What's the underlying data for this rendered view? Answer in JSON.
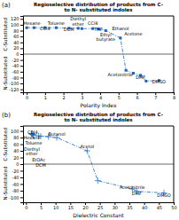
{
  "chart_data": [
    {
      "type": "line",
      "title": "Regioselective distribution of products from C- to N- substituted indoles",
      "panel_label": "(a)",
      "x_label": "Polarity Index",
      "y_label_top": "C-Substituted",
      "y_label_bottom": "N-Substituted",
      "x": [
        0.0,
        0.4,
        1.0,
        1.6,
        2.3,
        2.8,
        3.0,
        3.6,
        3.9,
        4.3,
        5.1,
        5.4,
        5.8,
        6.2,
        6.5,
        7.2
      ],
      "values": [
        90,
        90,
        90,
        90,
        88,
        88,
        87,
        87,
        86,
        80,
        55,
        -55,
        -65,
        -72,
        -92,
        -90
      ],
      "color": "#1565c0",
      "marker": "square",
      "line_style": "dashdot",
      "xlim": [
        -0.2,
        8
      ],
      "ylim": [
        -130,
        130
      ],
      "xticks": [
        0,
        1,
        2,
        3,
        4,
        5,
        6,
        7,
        8
      ],
      "yticks": [
        -120,
        -100,
        -80,
        -60,
        -40,
        -20,
        0,
        20,
        40,
        60,
        80,
        100,
        120
      ],
      "grid": false,
      "hlines": [
        0
      ],
      "annotations": [
        {
          "text": "Hexane",
          "x": 0.0,
          "y": 95
        },
        {
          "text": "CCl4",
          "x": 1.0,
          "y": 95
        },
        {
          "text": "Toluene",
          "x": 1.6,
          "y": 80
        },
        {
          "text": "Diethyl\nether",
          "x": 2.8,
          "y": 93
        },
        {
          "text": "DCM",
          "x": 2.3,
          "y": 80
        },
        {
          "text": "CCl4",
          "x": 3.6,
          "y": 93
        },
        {
          "text": "THF",
          "x": 3.9,
          "y": 79
        },
        {
          "text": "Ethyl\nbutyrate",
          "x": 4.3,
          "y": 93
        },
        {
          "text": "Ethanol",
          "x": 5.1,
          "y": 57
        },
        {
          "text": "Acetone",
          "x": 5.8,
          "y": 57
        },
        {
          "text": "Acetonitrile",
          "x": 5.1,
          "y": -58
        },
        {
          "text": "DMF",
          "x": 6.2,
          "y": -68
        },
        {
          "text": "DMSO",
          "x": 7.2,
          "y": -82
        }
      ]
    },
    {
      "type": "line",
      "title": "Regioselective distribution of products from C- to N- substituted indoles",
      "panel_label": "(b)",
      "x_label": "Dielectric Constant",
      "y_label_top": "C-Substituted",
      "y_label_bottom": "N-Substituted",
      "x": [
        1.88,
        2.0,
        2.24,
        2.38,
        2.6,
        4.3,
        5.0,
        7.6,
        10.4,
        20.7,
        24.3,
        36.0,
        37.5,
        46.7
      ],
      "values": [
        92,
        90,
        90,
        88,
        88,
        85,
        84,
        83,
        80,
        40,
        -50,
        -75,
        -82,
        -87
      ],
      "color": "#1565c0",
      "marker": "plus",
      "line_style": "dashdot",
      "xlim": [
        -1,
        50
      ],
      "ylim": [
        -115,
        115
      ],
      "xticks": [
        0,
        5,
        10,
        15,
        20,
        25,
        30,
        35,
        40,
        45,
        50
      ],
      "yticks": [
        -100,
        -80,
        -60,
        -40,
        -20,
        0,
        20,
        40,
        60,
        80,
        100
      ],
      "grid": false,
      "hlines": [
        0
      ],
      "annotations": [
        {
          "text": "Hexane",
          "x": 1.88,
          "y": 70
        },
        {
          "text": "CCl4",
          "x": 2.24,
          "y": 80
        },
        {
          "text": "Toluene",
          "x": 2.6,
          "y": 73
        },
        {
          "text": "Diethyl\nether",
          "x": 2.0,
          "y": 92
        },
        {
          "text": "EtOAc",
          "x": 4.3,
          "y": 72
        },
        {
          "text": "DCM",
          "x": 5.0,
          "y": 72
        },
        {
          "text": "Butanol",
          "x": 10.4,
          "y": 82
        },
        {
          "text": "Acetol",
          "x": 20.7,
          "y": 42
        },
        {
          "text": "Acetonitrile",
          "x": 36.0,
          "y": -58
        },
        {
          "text": "DMF",
          "x": 37.5,
          "y": -78
        },
        {
          "text": "DMSO",
          "x": 46.7,
          "y": -84
        }
      ]
    }
  ]
}
